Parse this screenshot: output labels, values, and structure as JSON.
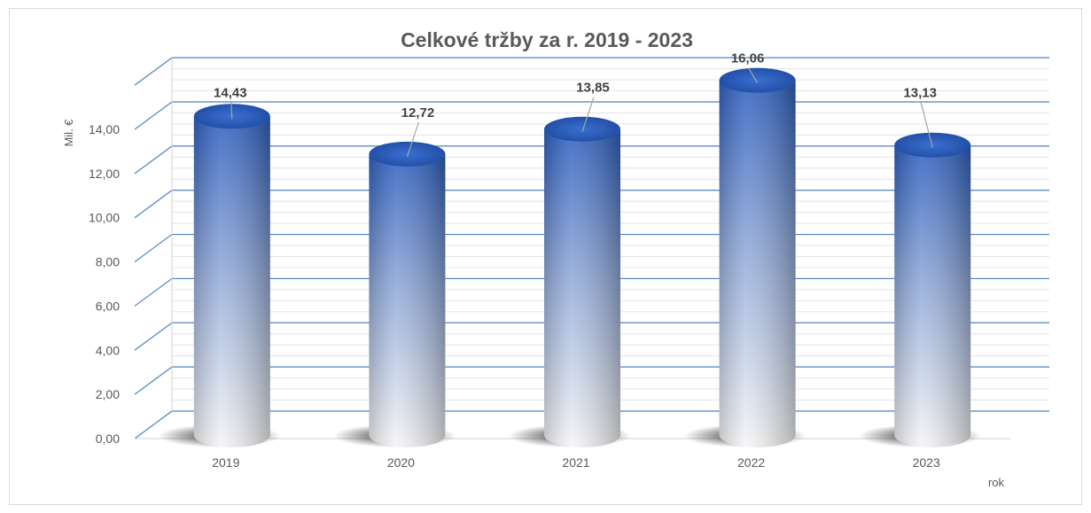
{
  "chart_data": {
    "type": "bar",
    "style": "3d-cylinder",
    "title": "Celkové tržby za r. 2019 - 2023",
    "xlabel": "rok",
    "ylabel": "Mil. €",
    "categories": [
      "2019",
      "2020",
      "2021",
      "2022",
      "2023"
    ],
    "values": [
      14.43,
      12.72,
      13.85,
      16.06,
      13.13
    ],
    "data_labels": [
      "14,43",
      "12,72",
      "13,85",
      "16,06",
      "13,13"
    ],
    "y_ticks": [
      "0,00",
      "2,00",
      "4,00",
      "6,00",
      "8,00",
      "10,00",
      "12,00",
      "14,00"
    ],
    "ylim": [
      0,
      16
    ],
    "grid": true,
    "colors": {
      "bar_top": "#2e5fbf",
      "bar_mid": "#8fa8d8",
      "bar_bottom": "#f2f2f2",
      "gridline": "#4f81bd",
      "minor_gridline": "#e4e4e4"
    }
  }
}
